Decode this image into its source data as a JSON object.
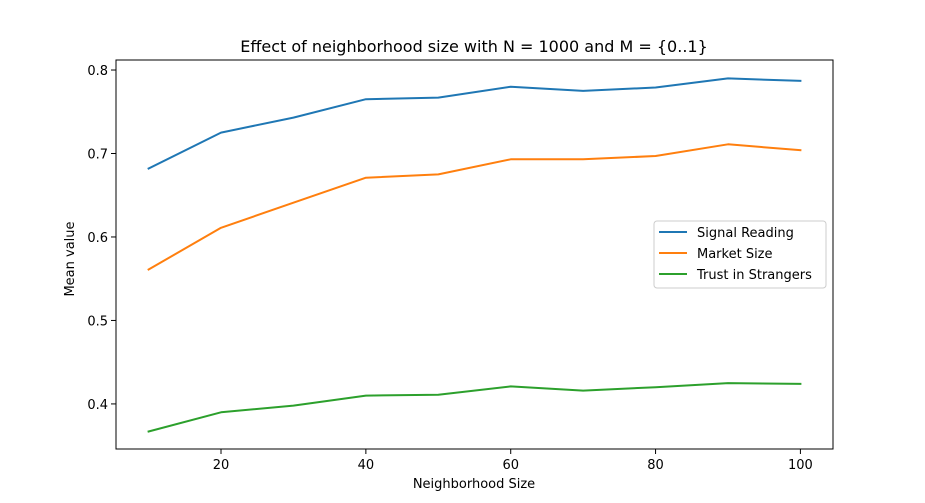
{
  "chart_data": {
    "type": "line",
    "title": "Effect of neighborhood size with N = 1000 and  M = {0..1}",
    "xlabel": "Neighborhood Size",
    "ylabel": "Mean value",
    "x": [
      10,
      20,
      30,
      40,
      50,
      60,
      70,
      80,
      90,
      100
    ],
    "xlim": [
      5.5,
      104.5
    ],
    "ylim": [
      0.346,
      0.812
    ],
    "xticks": [
      20,
      40,
      60,
      80,
      100
    ],
    "yticks": [
      0.4,
      0.5,
      0.6,
      0.7,
      0.8
    ],
    "grid": false,
    "legend_position": "center-right",
    "series": [
      {
        "name": "Signal Reading",
        "color": "#1f77b4",
        "values": [
          0.682,
          0.725,
          0.743,
          0.765,
          0.767,
          0.78,
          0.775,
          0.779,
          0.79,
          0.787
        ]
      },
      {
        "name": "Market Size",
        "color": "#ff7f0e",
        "values": [
          0.561,
          0.611,
          0.641,
          0.671,
          0.675,
          0.693,
          0.693,
          0.697,
          0.711,
          0.704
        ]
      },
      {
        "name": "Trust in Strangers",
        "color": "#2ca02c",
        "values": [
          0.367,
          0.39,
          0.398,
          0.41,
          0.411,
          0.421,
          0.416,
          0.42,
          0.425,
          0.424
        ]
      }
    ]
  }
}
